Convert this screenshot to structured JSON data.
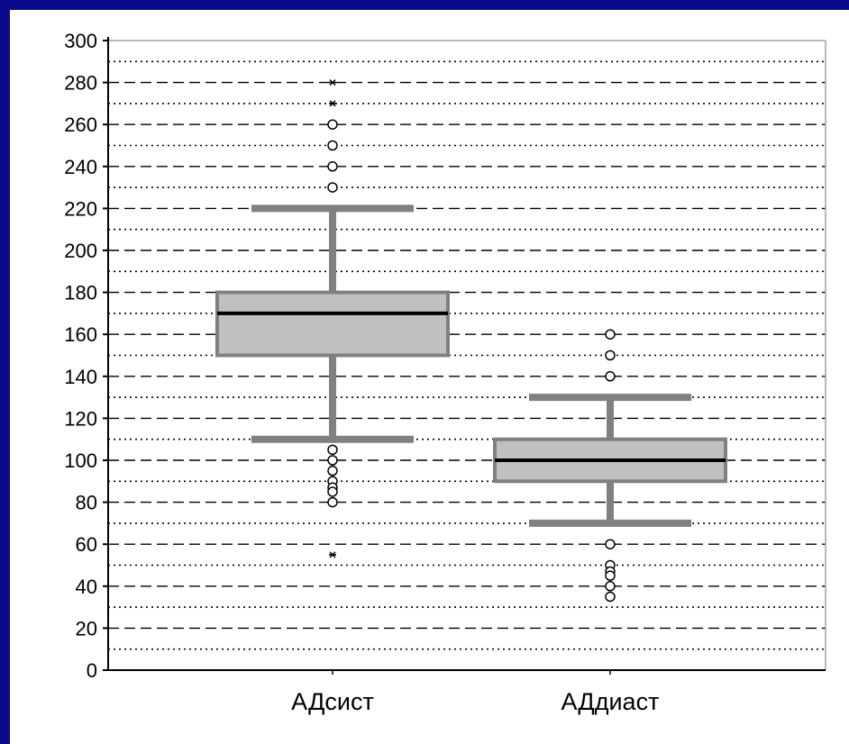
{
  "chart_data": {
    "type": "box",
    "title": "",
    "xlabel": "",
    "ylabel": "",
    "ylim": [
      0,
      300
    ],
    "y_ticks": [
      "300",
      "280",
      "260",
      "240",
      "220",
      "200",
      "180",
      "160",
      "140",
      "120",
      "100",
      "80",
      "60",
      "40",
      "20",
      "0"
    ],
    "grid": "horizontal dashed (major) and dotted (minor)",
    "categories": [
      "АДсист",
      "АДдиаст"
    ],
    "series": [
      {
        "category": "АДсист",
        "whisker_low": 110,
        "q1": 150,
        "median": 170,
        "q3": 180,
        "whisker_high": 220,
        "outliers": [
          230,
          240,
          250,
          260,
          105,
          100,
          95,
          90,
          87,
          85,
          80
        ],
        "extremes": [
          280,
          270,
          55
        ]
      },
      {
        "category": "АДдиаст",
        "whisker_low": 70,
        "q1": 90,
        "median": 100,
        "q3": 110,
        "whisker_high": 130,
        "outliers": [
          160,
          150,
          140,
          60,
          50,
          47,
          45,
          40,
          35
        ],
        "extremes": []
      }
    ],
    "colors": {
      "background": "#0a0a8c",
      "box_fill": "#c0c0c0",
      "box_stroke": "#808080",
      "whisker": "#808080",
      "median": "#000000"
    }
  }
}
